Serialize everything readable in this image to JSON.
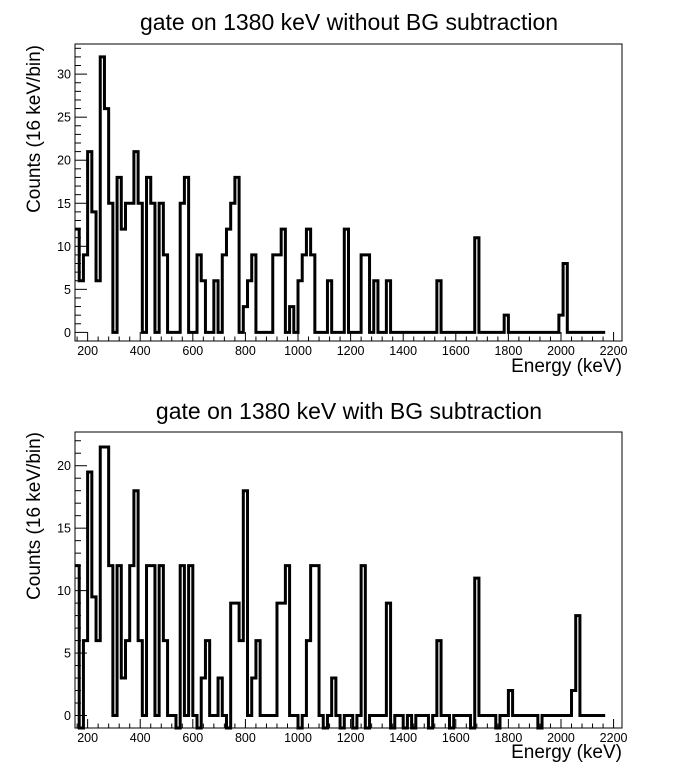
{
  "chart_data": [
    {
      "type": "histogram",
      "title": "gate on 1380 keV without BG subtraction",
      "xlabel": "Energy (keV)",
      "ylabel": "Counts (16 keV/bin)",
      "bin_width": 16,
      "x_start": 152,
      "xlim": [
        152,
        2232
      ],
      "ylim": [
        -1,
        33.5
      ],
      "x_ticks": [
        200,
        400,
        600,
        800,
        1000,
        1200,
        1400,
        1600,
        1800,
        2000,
        2200
      ],
      "y_ticks": [
        0,
        5,
        10,
        15,
        20,
        25,
        30
      ],
      "values": [
        12,
        6,
        9,
        21,
        14,
        6,
        32,
        26,
        15,
        0,
        18,
        12,
        15,
        15,
        21,
        15,
        0,
        18,
        15,
        0,
        15,
        9,
        0,
        0,
        0,
        15,
        18,
        0,
        0,
        9,
        6,
        0,
        0,
        6,
        0,
        9,
        12,
        15,
        18,
        0,
        3,
        6,
        9,
        0,
        0,
        0,
        0,
        9,
        9,
        12,
        0,
        3,
        0,
        6,
        9,
        12,
        9,
        0,
        0,
        0,
        6,
        0,
        0,
        0,
        12,
        0,
        0,
        0,
        9,
        9,
        0,
        6,
        0,
        0,
        6,
        0,
        0,
        0,
        0,
        0,
        0,
        0,
        0,
        0,
        0,
        0,
        6,
        0,
        0,
        0,
        0,
        0,
        0,
        0,
        0,
        11,
        0,
        0,
        0,
        0,
        0,
        0,
        2,
        0,
        0,
        0,
        0,
        0,
        0,
        0,
        0,
        0,
        0,
        0,
        0,
        2,
        8,
        0,
        0,
        0,
        0,
        0,
        0,
        0,
        0,
        0
      ],
      "grid": false,
      "legend": "none"
    },
    {
      "type": "histogram",
      "title": "gate on 1380 keV with BG subtraction",
      "xlabel": "Energy (keV)",
      "ylabel": "Counts (16 keV/bin)",
      "bin_width": 16,
      "x_start": 152,
      "xlim": [
        152,
        2232
      ],
      "ylim": [
        -1,
        22.7
      ],
      "x_ticks": [
        200,
        400,
        600,
        800,
        1000,
        1200,
        1400,
        1600,
        1800,
        2000,
        2200
      ],
      "y_ticks": [
        0,
        5,
        10,
        15,
        20
      ],
      "values": [
        12,
        -1,
        6,
        19.5,
        9.5,
        6,
        21.5,
        21.5,
        12,
        0,
        12,
        3,
        6,
        12,
        18,
        6,
        0,
        12,
        12,
        0,
        12,
        6,
        0,
        0,
        -1,
        12,
        0,
        12,
        0,
        -1,
        3,
        6,
        0,
        0,
        3,
        0,
        -1,
        9,
        9,
        6,
        18,
        0,
        3,
        6,
        0,
        0,
        0,
        0,
        9,
        9,
        12,
        0,
        0,
        -1,
        0,
        6,
        12,
        12,
        0,
        -1,
        0,
        3,
        0,
        -1,
        0,
        0,
        -1,
        0,
        12,
        -1,
        0,
        0,
        0,
        0,
        9,
        -1,
        0,
        0,
        -1,
        0,
        -1,
        0,
        0,
        0,
        -1,
        0,
        6,
        0,
        0,
        -1,
        0,
        0,
        0,
        0,
        -1,
        11,
        0,
        0,
        0,
        0,
        -1,
        0,
        0,
        2,
        0,
        0,
        0,
        0,
        0,
        0,
        -1,
        0,
        0,
        0,
        0,
        0,
        0,
        0,
        2,
        8,
        0,
        0,
        0,
        0,
        0,
        0
      ]
    }
  ]
}
